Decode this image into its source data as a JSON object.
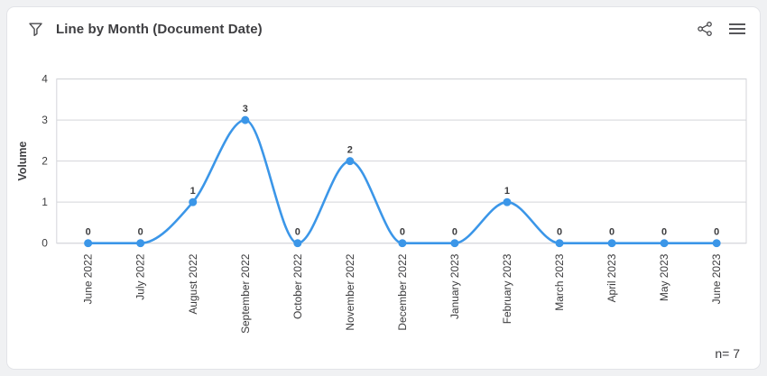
{
  "header": {
    "title": "Line by Month (Document Date)",
    "icons": {
      "filter": "filter-funnel",
      "share": "share-nodes",
      "menu": "hamburger-menu"
    }
  },
  "footer": {
    "n_label": "n= 7"
  },
  "chart_data": {
    "type": "line",
    "title": "Line by Month (Document Date)",
    "categories": [
      "June 2022",
      "July 2022",
      "August 2022",
      "September 2022",
      "October 2022",
      "November 2022",
      "December 2022",
      "January 2023",
      "February 2023",
      "March 2023",
      "April 2023",
      "May 2023",
      "June 2023"
    ],
    "values": [
      0,
      0,
      1,
      3,
      0,
      2,
      0,
      0,
      1,
      0,
      0,
      0,
      0
    ],
    "xlabel": "",
    "ylabel": "Volume",
    "ylim": [
      0,
      4
    ],
    "yticks": [
      0,
      1,
      2,
      3,
      4
    ],
    "grid": true,
    "legend": "none",
    "curve": "monotone-spline",
    "line_color": "#3b96e8",
    "point_color": "#3b96e8",
    "grid_color": "#d4d5da",
    "label_color": "#3c3c3e",
    "n": 7
  }
}
